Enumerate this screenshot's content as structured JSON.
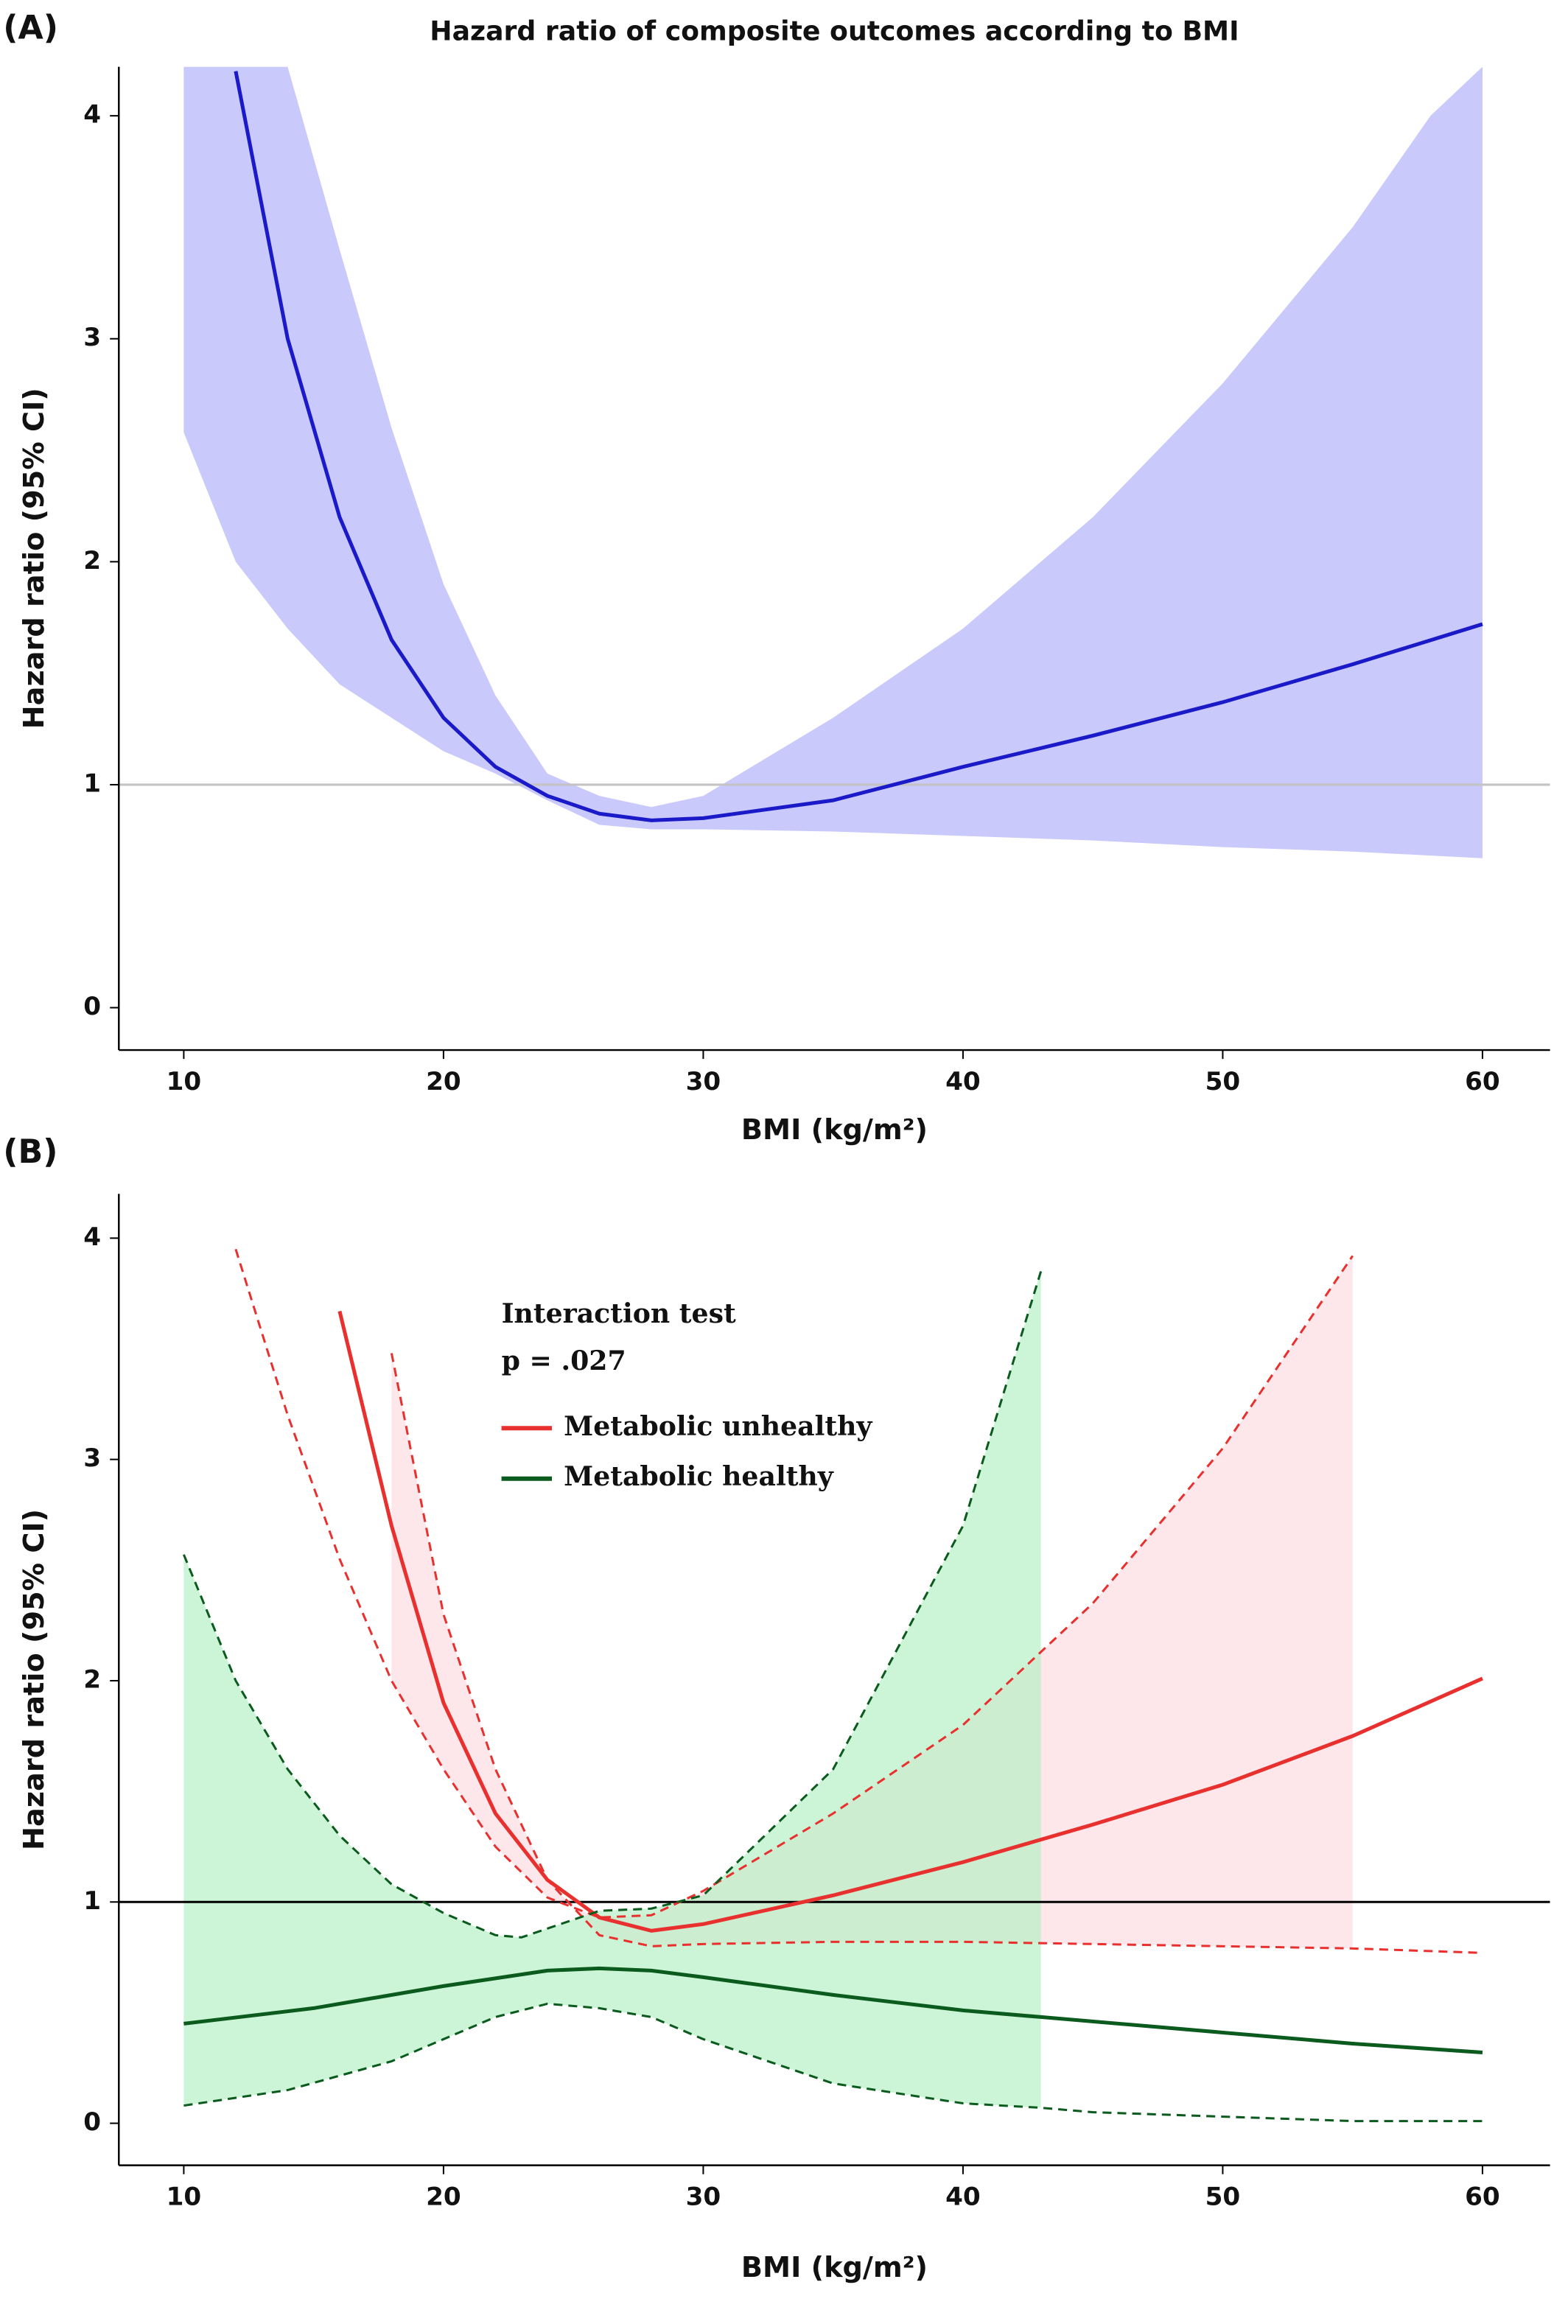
{
  "chart_data": [
    {
      "type": "line",
      "panel_label": "(A)",
      "title": "Hazard ratio of composite outcomes according to BMI",
      "xlabel": "BMI (kg/m²)",
      "ylabel": "Hazard ratio (95% CI)",
      "xlim": [
        7.5,
        62.6
      ],
      "ylim": [
        -0.19,
        4.22
      ],
      "xticks": [
        10,
        20,
        30,
        40,
        50,
        60
      ],
      "yticks": [
        0,
        1,
        2,
        3,
        4
      ],
      "hline": {
        "value": 1,
        "color": "#c4c4c4"
      },
      "series": [
        {
          "color": "#1a1ac8",
          "bound_dash": false,
          "x": [
            12,
            14,
            16,
            18,
            20,
            22,
            24,
            26,
            28,
            30,
            35,
            40,
            45,
            50,
            55,
            60
          ],
          "values": [
            4.2,
            3.0,
            2.2,
            1.65,
            1.3,
            1.08,
            0.95,
            0.87,
            0.84,
            0.85,
            0.93,
            1.08,
            1.22,
            1.37,
            1.54,
            1.72
          ],
          "band": {
            "color": "#c9c9fb",
            "upper": {
              "x": [
                10,
                12,
                14,
                16,
                18,
                20,
                22,
                24,
                26,
                28,
                30,
                35,
                40,
                45,
                50,
                55,
                58,
                60
              ],
              "values": [
                4.22,
                4.22,
                4.22,
                3.4,
                2.6,
                1.9,
                1.4,
                1.05,
                0.95,
                0.9,
                0.95,
                1.3,
                1.7,
                2.2,
                2.8,
                3.5,
                4.0,
                4.22
              ]
            },
            "lower": {
              "x": [
                10,
                12,
                14,
                16,
                18,
                20,
                22,
                24,
                26,
                28,
                30,
                35,
                40,
                45,
                50,
                55,
                60
              ],
              "values": [
                2.58,
                2.0,
                1.7,
                1.45,
                1.3,
                1.15,
                1.05,
                0.93,
                0.82,
                0.8,
                0.8,
                0.79,
                0.77,
                0.75,
                0.72,
                0.7,
                0.67
              ]
            }
          }
        }
      ]
    },
    {
      "type": "line",
      "panel_label": "(B)",
      "xlabel": "BMI (kg/m²)",
      "ylabel": "Hazard ratio (95% CI)",
      "xlim": [
        7.5,
        62.6
      ],
      "ylim": [
        -0.19,
        4.2
      ],
      "xticks": [
        10,
        20,
        30,
        40,
        50,
        60
      ],
      "yticks": [
        0,
        1,
        2,
        3,
        4
      ],
      "hline": {
        "value": 1,
        "color": "#000000"
      },
      "annotations": [
        "Interaction test",
        "p = .027"
      ],
      "series": [
        {
          "name": "Metabolic unhealthy",
          "color": "#e8312f",
          "bound_dash": true,
          "x": [
            16,
            18,
            20,
            22,
            24,
            26,
            28,
            30,
            35,
            40,
            45,
            50,
            55,
            60
          ],
          "values": [
            3.67,
            2.7,
            1.9,
            1.4,
            1.1,
            0.93,
            0.87,
            0.9,
            1.03,
            1.18,
            1.35,
            1.53,
            1.75,
            2.01
          ],
          "band": {
            "color": "#fcdde3",
            "upper": {
              "x": [
                12,
                14,
                16,
                18,
                20,
                22,
                24,
                26,
                28,
                30,
                35,
                40,
                45,
                50,
                55
              ],
              "values": [
                3.95,
                3.2,
                2.55,
                2.0,
                1.6,
                1.25,
                1.02,
                0.93,
                0.94,
                1.05,
                1.4,
                1.8,
                2.35,
                3.05,
                3.92
              ]
            },
            "lower": {
              "x": [
                18,
                20,
                22,
                24,
                26,
                28,
                30,
                35,
                40,
                45,
                50,
                55,
                60
              ],
              "values": [
                3.48,
                2.3,
                1.6,
                1.1,
                0.85,
                0.8,
                0.81,
                0.82,
                0.82,
                0.81,
                0.8,
                0.79,
                0.77
              ]
            }
          }
        },
        {
          "name": "Metabolic healthy",
          "color": "#0b5a1e",
          "bound_dash": true,
          "x": [
            10,
            15,
            20,
            24,
            26,
            28,
            30,
            35,
            40,
            43,
            50,
            55,
            60
          ],
          "values": [
            0.45,
            0.52,
            0.62,
            0.69,
            0.7,
            0.69,
            0.66,
            0.58,
            0.51,
            0.48,
            0.41,
            0.36,
            0.32
          ],
          "band": {
            "color": "#b6f0c4",
            "upper": {
              "x": [
                10,
                12,
                14,
                16,
                18,
                20,
                22,
                23,
                24,
                26,
                28,
                30,
                35,
                40,
                43
              ],
              "values": [
                2.57,
                2.0,
                1.6,
                1.3,
                1.08,
                0.95,
                0.85,
                0.84,
                0.88,
                0.96,
                0.97,
                1.03,
                1.6,
                2.7,
                3.85
              ]
            },
            "lower": {
              "x": [
                10,
                14,
                18,
                20,
                22,
                24,
                26,
                28,
                30,
                35,
                40,
                43,
                45,
                50,
                55,
                60
              ],
              "values": [
                0.08,
                0.15,
                0.28,
                0.38,
                0.48,
                0.54,
                0.52,
                0.48,
                0.38,
                0.18,
                0.09,
                0.07,
                0.05,
                0.03,
                0.01,
                0.01
              ]
            }
          }
        }
      ]
    }
  ]
}
